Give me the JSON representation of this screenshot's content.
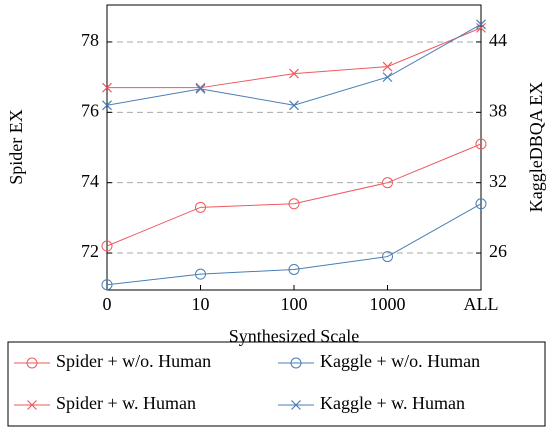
{
  "chart_data": {
    "type": "line",
    "x_label": "Synthesized Scale",
    "y_label": "Spider EX",
    "y2_label": "KaggleDBQA EX",
    "categories": [
      "0",
      "10",
      "100",
      "1000",
      "ALL"
    ],
    "ylim": [
      70.95,
      79.05
    ],
    "yticks": [
      72,
      74,
      76,
      78
    ],
    "y2lim": [
      22.85,
      47.15
    ],
    "y2ticks": [
      26,
      32,
      38,
      44
    ],
    "grid": true,
    "legend": "bottom",
    "series": [
      {
        "name": "Spider + w/o. Human",
        "color": "#ee5a5f",
        "marker": "circle",
        "values": [
          72.2,
          73.3,
          73.4,
          74.0,
          75.1
        ]
      },
      {
        "name": "Kaggle + w/o. Human",
        "color": "#4a7db5",
        "marker": "circle",
        "axis": "y2",
        "values": [
          23.3,
          24.2,
          24.6,
          25.7,
          30.2
        ]
      },
      {
        "name": "Spider + w. Human",
        "color": "#ee5a5f",
        "marker": "x",
        "values": [
          76.7,
          76.7,
          77.1,
          77.3,
          78.4
        ]
      },
      {
        "name": "Kaggle + w. Human",
        "color": "#4a7db5",
        "marker": "x",
        "axis": "y2",
        "values": [
          38.6,
          40.0,
          38.6,
          41.0,
          45.5
        ]
      }
    ]
  }
}
